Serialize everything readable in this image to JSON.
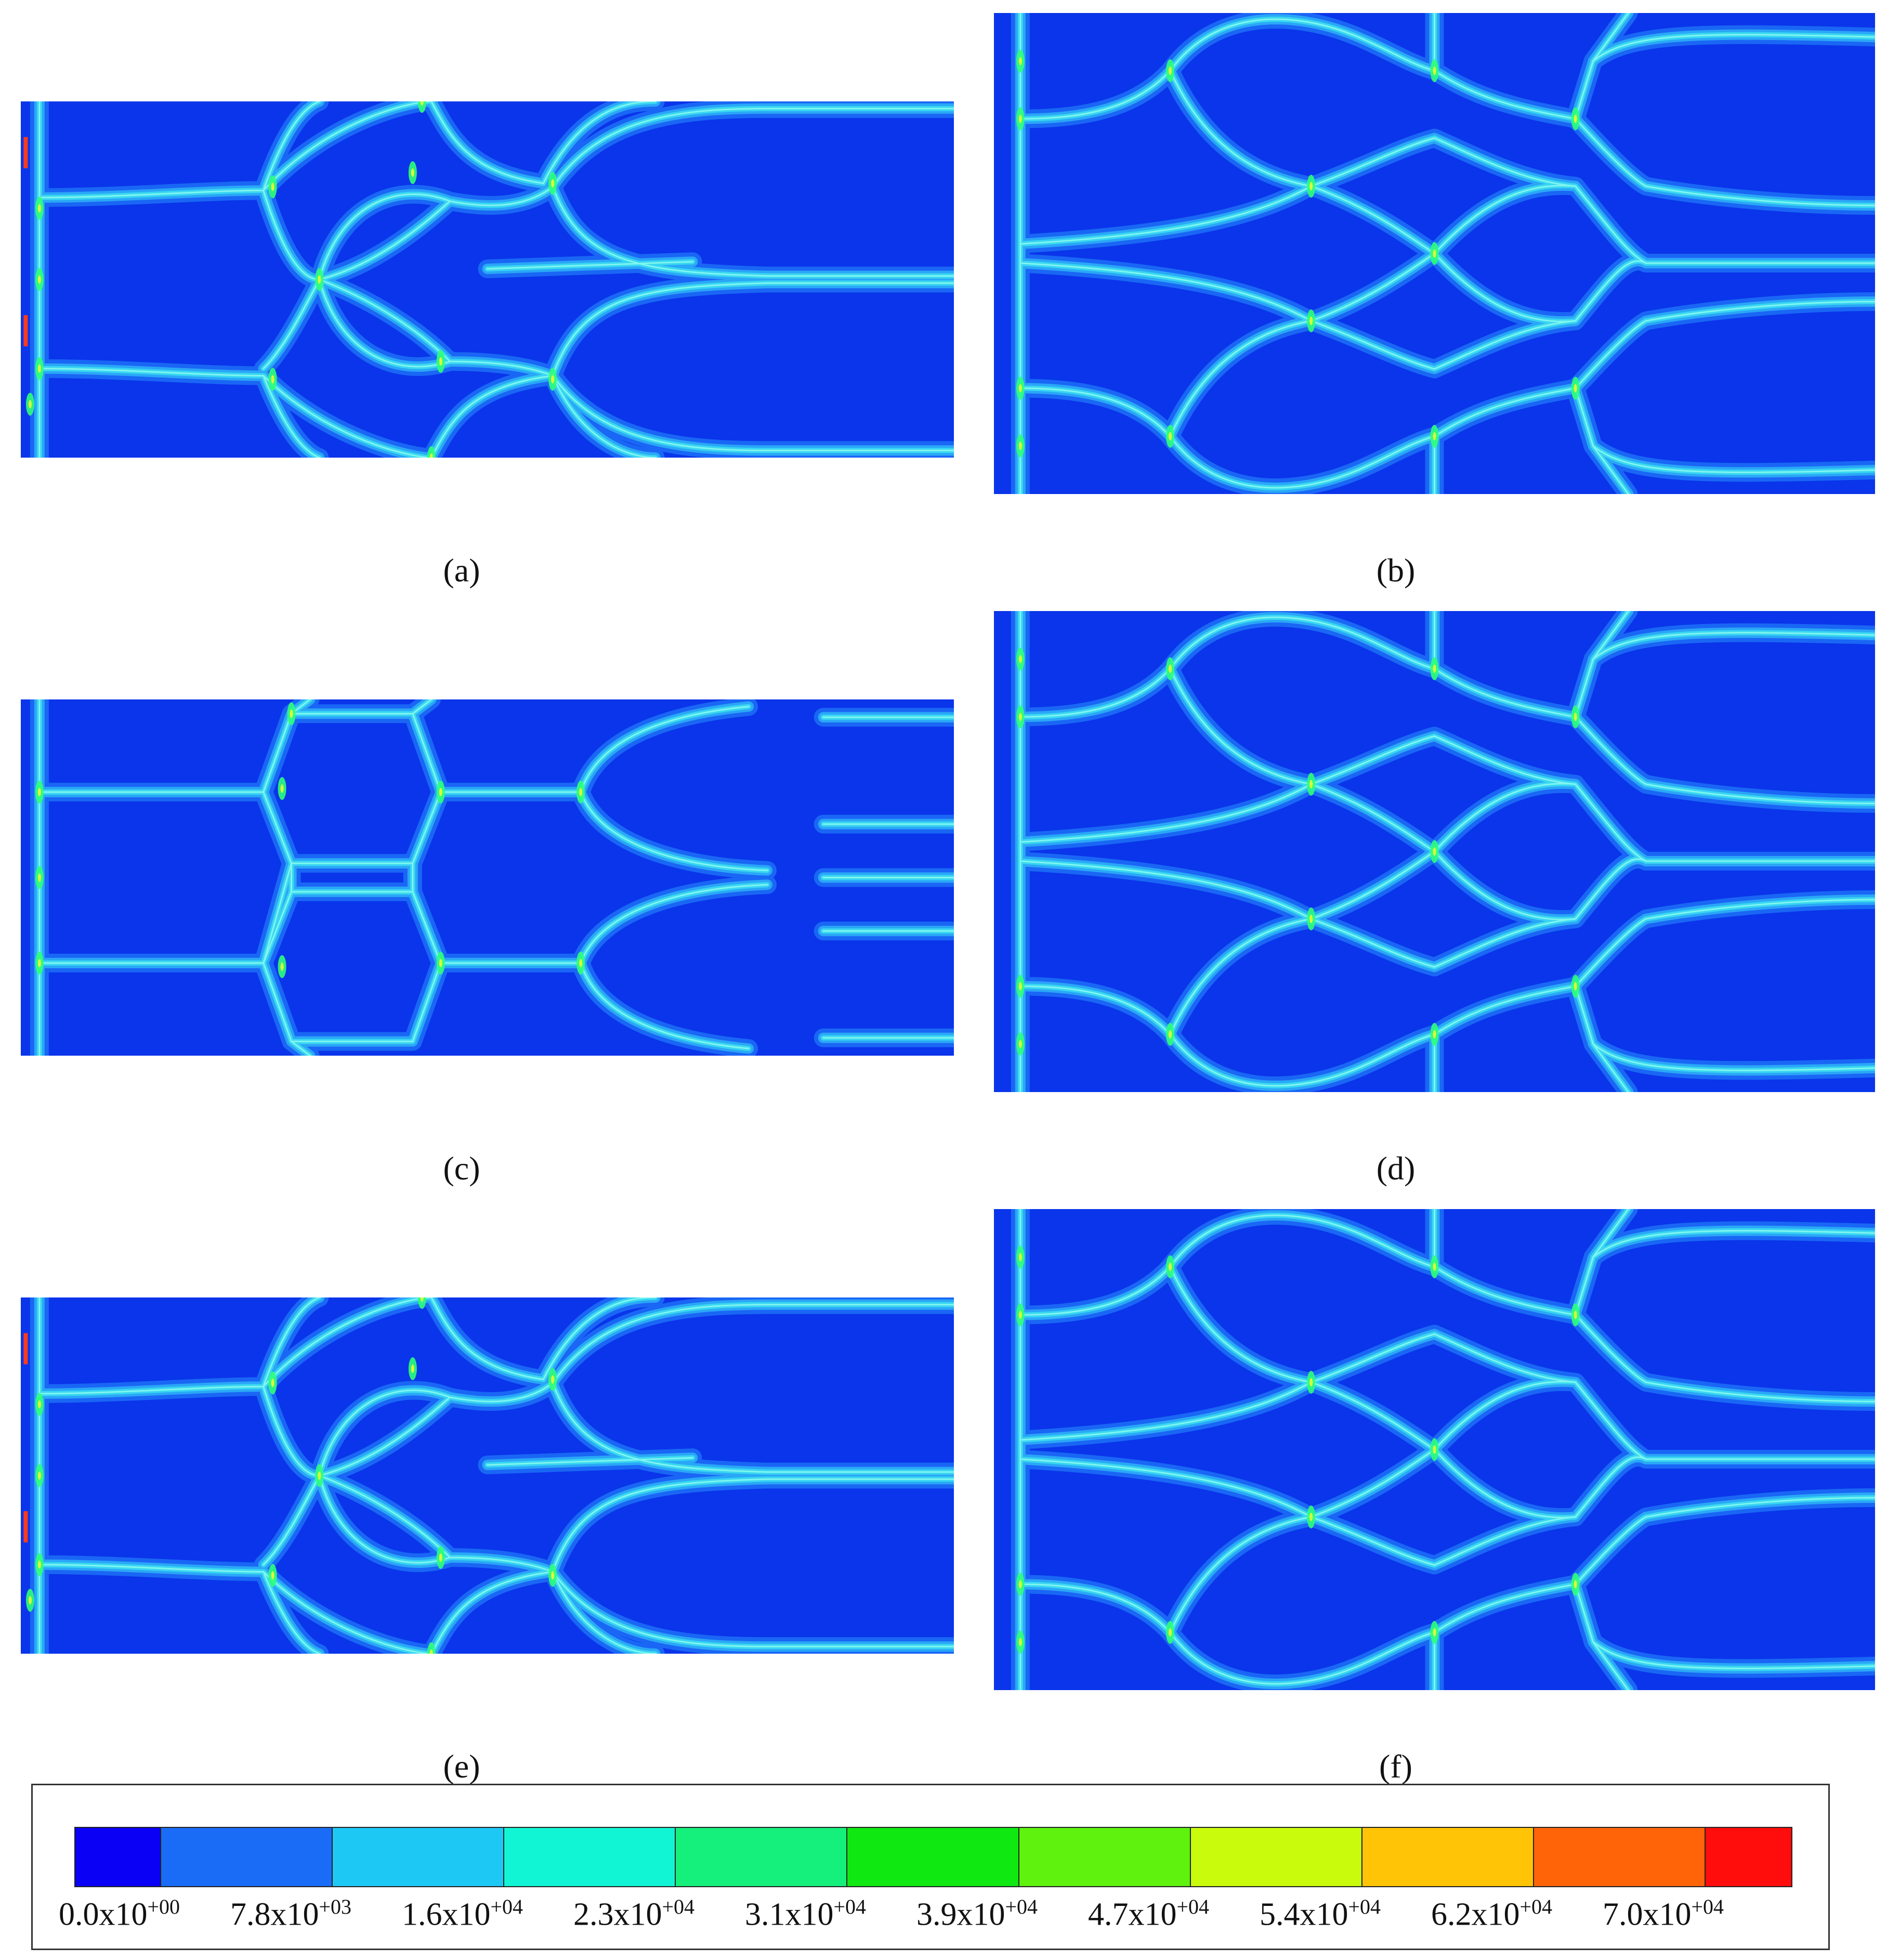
{
  "panels": [
    {
      "caption": "(a)",
      "layout": "A"
    },
    {
      "caption": "(b)",
      "layout": "B"
    },
    {
      "caption": "(c)",
      "layout": "C"
    },
    {
      "caption": "(d)",
      "layout": "B"
    },
    {
      "caption": "(e)",
      "layout": "A"
    },
    {
      "caption": "(f)",
      "layout": "B"
    }
  ],
  "colors": {
    "background": "#0a35ea",
    "band_outer": "#1a66f5",
    "band_mid": "#2aa7f7",
    "band_inner": "#39d6f2",
    "band_core": "#7ff5ee",
    "hotspot_green": "#2cff7a",
    "hotspot_yellow": "#d9ff3a",
    "hotspot_red": "#ff3b1a"
  },
  "legend": {
    "swatches": [
      "#0a00f5",
      "#1a6cf6",
      "#1ec8f5",
      "#12f5d4",
      "#15f07c",
      "#10e812",
      "#5ef20e",
      "#c9fb0c",
      "#ffc405",
      "#ff6408",
      "#ff0c0c"
    ],
    "labels": [
      {
        "mantissa": "0.0x10",
        "exp": "+00"
      },
      {
        "mantissa": "7.8x10",
        "exp": "+03"
      },
      {
        "mantissa": "1.6x10",
        "exp": "+04"
      },
      {
        "mantissa": "2.3x10",
        "exp": "+04"
      },
      {
        "mantissa": "3.1x10",
        "exp": "+04"
      },
      {
        "mantissa": "3.9x10",
        "exp": "+04"
      },
      {
        "mantissa": "4.7x10",
        "exp": "+04"
      },
      {
        "mantissa": "5.4x10",
        "exp": "+04"
      },
      {
        "mantissa": "6.2x10",
        "exp": "+04"
      },
      {
        "mantissa": "7.0x10",
        "exp": "+04"
      }
    ]
  }
}
